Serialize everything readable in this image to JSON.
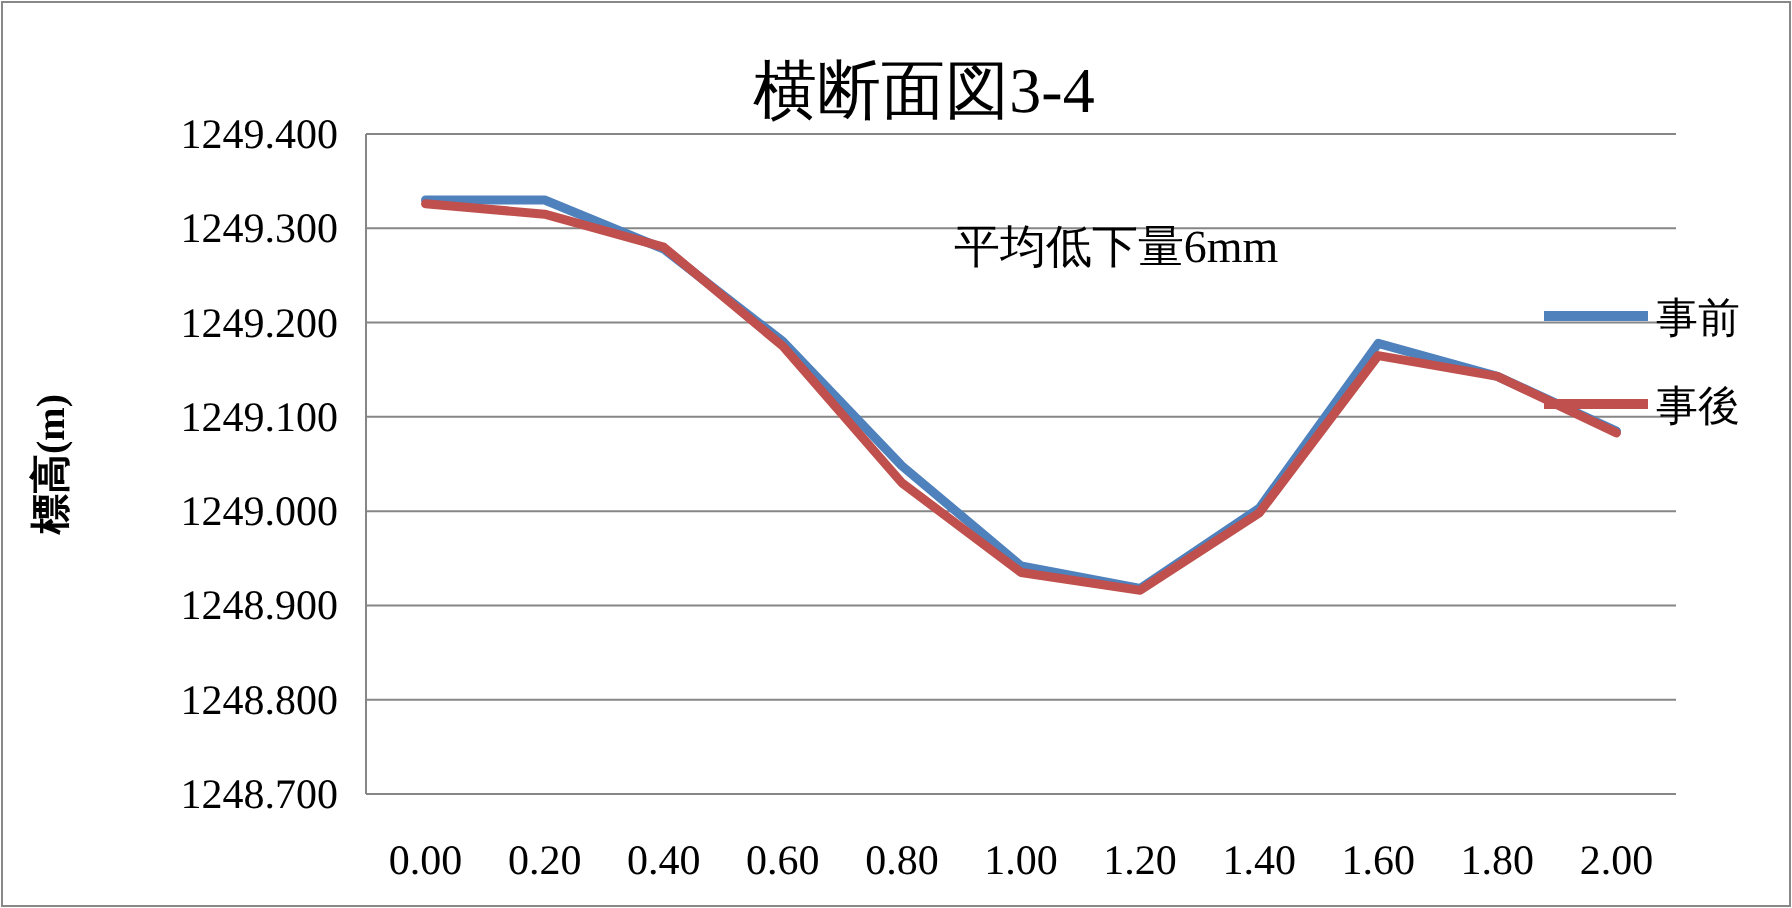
{
  "chart_data": {
    "type": "line",
    "title": "横断面図3-4",
    "ylabel": "標高(m)",
    "categories": [
      "0.00",
      "0.20",
      "0.40",
      "0.60",
      "0.80",
      "1.00",
      "1.20",
      "1.40",
      "1.60",
      "1.80",
      "2.00"
    ],
    "series": [
      {
        "name": "事前",
        "color": "#4f81bd",
        "values": [
          1249.33,
          1249.33,
          1249.278,
          1249.18,
          1249.048,
          1248.942,
          1248.918,
          1249.003,
          1249.178,
          1249.143,
          1249.085
        ]
      },
      {
        "name": "事後",
        "color": "#c0504d",
        "values": [
          1249.326,
          1249.315,
          1249.28,
          1249.175,
          1249.03,
          1248.935,
          1248.916,
          1248.998,
          1249.165,
          1249.143,
          1249.083
        ]
      }
    ],
    "ylim": [
      1248.7,
      1249.4
    ],
    "yticks": [
      {
        "value": 1248.7,
        "label": "1248.700"
      },
      {
        "value": 1248.8,
        "label": "1248.800"
      },
      {
        "value": 1248.9,
        "label": "1248.900"
      },
      {
        "value": 1249.0,
        "label": "1249.000"
      },
      {
        "value": 1249.1,
        "label": "1249.100"
      },
      {
        "value": 1249.2,
        "label": "1249.200"
      },
      {
        "value": 1249.3,
        "label": "1249.300"
      },
      {
        "value": 1249.4,
        "label": "1249.400"
      }
    ],
    "grid": "y",
    "legend": "right",
    "annotations": [
      "平均低下量6mm"
    ]
  }
}
